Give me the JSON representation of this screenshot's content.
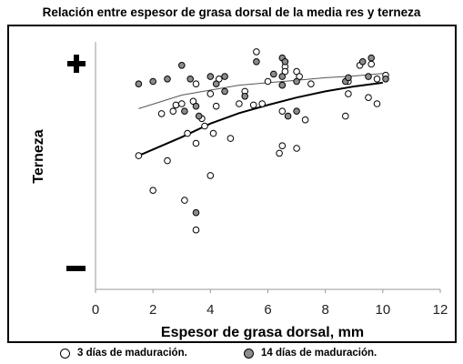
{
  "chart_data": {
    "type": "scatter",
    "title": "Relación entre espesor de grasa dorsal de la media res y terneza",
    "xlabel": "Espesor de grasa dorsal, mm",
    "ylabel": "Terneza",
    "xlim": [
      0,
      12
    ],
    "ylim": [
      0,
      10
    ],
    "x_ticks": [
      0,
      2,
      4,
      6,
      8,
      10,
      12
    ],
    "y_tick_symbols": {
      "top": "✚",
      "bottom": "▬"
    },
    "y_ticks_numeric": false,
    "grid": false,
    "legend_position": "bottom",
    "series": [
      {
        "name": "3 días de maduración.",
        "marker_fill": "#ffffff",
        "marker_edge": "#000000",
        "trend_color": "#000000",
        "trend": [
          [
            1.5,
            5.4
          ],
          [
            3,
            6.15
          ],
          [
            4,
            6.7
          ],
          [
            5,
            7.12
          ],
          [
            6,
            7.45
          ],
          [
            7,
            7.75
          ],
          [
            8,
            8.0
          ],
          [
            9,
            8.2
          ],
          [
            10,
            8.35
          ]
        ],
        "points": [
          [
            1.5,
            5.4
          ],
          [
            2.0,
            4.0
          ],
          [
            2.3,
            7.1
          ],
          [
            2.5,
            5.2
          ],
          [
            2.7,
            7.2
          ],
          [
            2.8,
            7.45
          ],
          [
            3.0,
            7.5
          ],
          [
            3.1,
            3.6
          ],
          [
            3.2,
            6.3
          ],
          [
            3.4,
            7.6
          ],
          [
            3.5,
            8.3
          ],
          [
            3.5,
            5.9
          ],
          [
            3.5,
            2.4
          ],
          [
            3.7,
            6.9
          ],
          [
            3.8,
            6.6
          ],
          [
            4.0,
            7.9
          ],
          [
            4.0,
            4.6
          ],
          [
            4.1,
            6.3
          ],
          [
            4.2,
            7.4
          ],
          [
            4.3,
            8.5
          ],
          [
            4.7,
            6.1
          ],
          [
            5.0,
            7.5
          ],
          [
            5.2,
            8.0
          ],
          [
            5.5,
            7.45
          ],
          [
            5.6,
            9.6
          ],
          [
            5.8,
            7.5
          ],
          [
            6.0,
            8.4
          ],
          [
            6.4,
            5.5
          ],
          [
            6.5,
            5.8
          ],
          [
            6.5,
            7.2
          ],
          [
            6.5,
            8.25
          ],
          [
            6.6,
            9.0
          ],
          [
            6.6,
            8.8
          ],
          [
            7.0,
            5.7
          ],
          [
            7.0,
            8.8
          ],
          [
            7.1,
            8.6
          ],
          [
            7.3,
            6.85
          ],
          [
            7.5,
            8.3
          ],
          [
            8.7,
            7.0
          ],
          [
            8.8,
            7.9
          ],
          [
            8.8,
            8.4
          ],
          [
            9.2,
            9.05
          ],
          [
            9.5,
            7.75
          ],
          [
            9.6,
            9.1
          ],
          [
            9.8,
            8.5
          ],
          [
            9.8,
            7.5
          ],
          [
            10.1,
            8.65
          ]
        ]
      },
      {
        "name": "14 días de maduración.",
        "marker_fill": "#8c8c8c",
        "marker_edge": "#000000",
        "trend_color": "#555555",
        "trend": [
          [
            1.5,
            7.3
          ],
          [
            3,
            7.85
          ],
          [
            4,
            8.05
          ],
          [
            5,
            8.25
          ],
          [
            6,
            8.35
          ],
          [
            7,
            8.45
          ],
          [
            8,
            8.55
          ],
          [
            9,
            8.62
          ],
          [
            10,
            8.72
          ]
        ],
        "points": [
          [
            1.5,
            8.3
          ],
          [
            2.0,
            8.4
          ],
          [
            2.5,
            8.5
          ],
          [
            3.0,
            9.05
          ],
          [
            3.1,
            7.2
          ],
          [
            3.3,
            8.5
          ],
          [
            3.5,
            7.4
          ],
          [
            3.5,
            3.1
          ],
          [
            3.6,
            7.0
          ],
          [
            4.0,
            8.6
          ],
          [
            4.2,
            8.3
          ],
          [
            4.5,
            8.0
          ],
          [
            4.5,
            8.6
          ],
          [
            5.2,
            7.8
          ],
          [
            5.6,
            9.2
          ],
          [
            6.2,
            8.7
          ],
          [
            6.5,
            8.6
          ],
          [
            6.5,
            8.25
          ],
          [
            6.5,
            9.35
          ],
          [
            6.6,
            9.2
          ],
          [
            6.7,
            7.0
          ],
          [
            7.0,
            8.4
          ],
          [
            7.0,
            7.2
          ],
          [
            8.7,
            8.4
          ],
          [
            8.8,
            8.55
          ],
          [
            9.3,
            9.2
          ],
          [
            9.5,
            8.6
          ],
          [
            9.6,
            9.35
          ],
          [
            10.1,
            8.5
          ]
        ]
      }
    ]
  }
}
